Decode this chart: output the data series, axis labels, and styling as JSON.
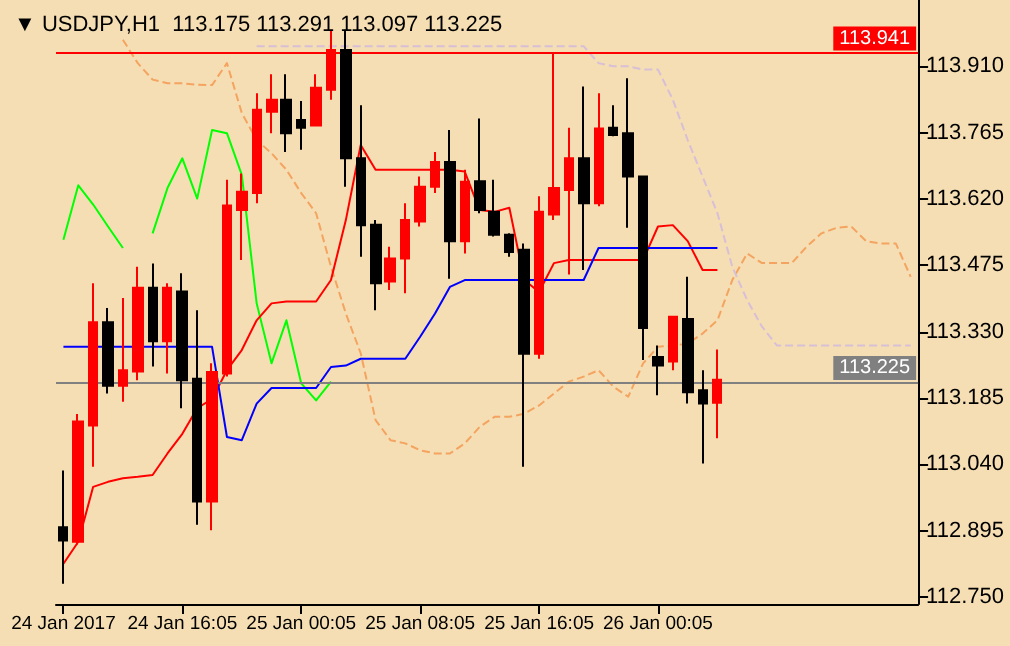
{
  "chart_data": {
    "type": "candlestick",
    "title": "▼ USDJPY,H1  113.175 113.291 113.097 113.225",
    "categories": [
      "24 Jan 2017",
      null,
      null,
      null,
      null,
      null,
      null,
      null,
      "24 Jan 16:05",
      null,
      null,
      null,
      null,
      null,
      null,
      null,
      "25 Jan 00:05",
      null,
      null,
      null,
      null,
      null,
      null,
      null,
      "25 Jan 08:05",
      null,
      null,
      null,
      null,
      null,
      null,
      null,
      "25 Jan 16:05",
      null,
      null,
      null,
      null,
      null,
      null,
      null,
      "26 Jan 00:05",
      null,
      null,
      null,
      null,
      null,
      null,
      null,
      null,
      null,
      null,
      null,
      null,
      null,
      null,
      null,
      null,
      null
    ],
    "ohlc": [
      [
        112.903,
        113.027,
        112.779,
        112.874
      ],
      [
        112.871,
        113.15,
        112.865,
        113.134
      ],
      [
        113.125,
        113.436,
        113.035,
        113.351
      ],
      [
        113.351,
        113.382,
        113.195,
        113.212
      ],
      [
        113.212,
        113.404,
        113.177,
        113.246
      ],
      [
        113.243,
        113.472,
        113.224,
        113.426
      ],
      [
        113.426,
        113.479,
        113.254,
        113.309
      ],
      [
        113.309,
        113.436,
        113.239,
        113.426
      ],
      [
        113.418,
        113.458,
        113.163,
        113.224
      ],
      [
        113.227,
        113.377,
        112.908,
        112.959
      ],
      [
        112.959,
        113.261,
        112.896,
        113.242
      ],
      [
        113.239,
        113.662,
        113.232,
        113.606
      ],
      [
        113.596,
        113.676,
        113.487,
        113.636
      ],
      [
        113.633,
        113.851,
        113.611,
        113.815
      ],
      [
        113.811,
        113.893,
        113.764,
        113.837
      ],
      [
        113.837,
        113.893,
        113.723,
        113.764
      ],
      [
        113.793,
        113.834,
        113.728,
        113.776
      ],
      [
        113.781,
        113.893,
        113.779,
        113.863
      ],
      [
        113.859,
        113.99,
        113.837,
        113.946
      ],
      [
        113.946,
        113.99,
        113.647,
        113.709
      ],
      [
        113.709,
        113.825,
        113.494,
        113.563
      ],
      [
        113.564,
        113.574,
        113.377,
        113.436
      ],
      [
        113.44,
        113.516,
        113.421,
        113.49
      ],
      [
        113.49,
        113.611,
        113.414,
        113.574
      ],
      [
        113.571,
        113.669,
        113.56,
        113.647
      ],
      [
        113.647,
        113.723,
        113.633,
        113.701
      ],
      [
        113.701,
        113.771,
        113.446,
        113.528
      ],
      [
        113.528,
        113.684,
        113.501,
        113.658
      ],
      [
        113.659,
        113.796,
        113.589,
        113.596
      ],
      [
        113.592,
        113.662,
        113.538,
        113.542
      ],
      [
        113.542,
        113.545,
        113.494,
        113.504
      ],
      [
        113.509,
        113.523,
        113.035,
        113.282
      ],
      [
        113.282,
        113.626,
        113.271,
        113.592
      ],
      [
        113.586,
        113.939,
        113.574,
        113.644
      ],
      [
        113.64,
        113.776,
        113.455,
        113.709
      ],
      [
        113.709,
        113.866,
        113.465,
        113.611
      ],
      [
        113.611,
        113.851,
        113.604,
        113.774
      ],
      [
        113.776,
        113.825,
        113.757,
        113.76
      ],
      [
        113.764,
        113.884,
        113.557,
        113.669
      ],
      [
        113.669,
        113.669,
        113.268,
        113.338
      ],
      [
        113.275,
        113.3,
        113.191,
        113.256
      ],
      [
        113.265,
        113.363,
        113.246,
        113.363
      ],
      [
        113.358,
        113.45,
        113.173,
        113.198
      ],
      [
        113.202,
        113.246,
        113.042,
        113.173
      ],
      [
        113.175,
        113.291,
        113.097,
        113.225
      ],
      null,
      null,
      null,
      null,
      null,
      null,
      null,
      null,
      null,
      null,
      null,
      null,
      null
    ],
    "series": [
      {
        "type": "line",
        "color": "#f4a460",
        "line_style": "dashed",
        "values": [
          null,
          null,
          null,
          null,
          113.968,
          113.917,
          113.881,
          113.873,
          113.873,
          113.87,
          113.869,
          113.917,
          113.808,
          113.749,
          113.72,
          113.684,
          113.633,
          113.589,
          113.472,
          113.37,
          113.283,
          113.137,
          113.093,
          113.086,
          113.071,
          113.064,
          113.064,
          113.086,
          113.122,
          113.144,
          113.144,
          113.151,
          113.169,
          113.195,
          113.221,
          113.232,
          113.246,
          113.21,
          113.188,
          113.261,
          113.297,
          113.3,
          113.304,
          113.326,
          113.355,
          113.443,
          113.501,
          113.48,
          113.48,
          113.48,
          113.516,
          113.545,
          113.557,
          113.56,
          113.528,
          113.523,
          113.523,
          113.45
        ]
      },
      {
        "type": "line",
        "color": "#d8bfd8",
        "line_style": "dashed",
        "values": [
          null,
          null,
          null,
          null,
          null,
          null,
          null,
          null,
          null,
          null,
          null,
          null,
          null,
          113.954,
          113.954,
          113.954,
          113.954,
          113.954,
          113.954,
          113.954,
          113.954,
          113.954,
          113.954,
          113.954,
          113.954,
          113.954,
          113.954,
          113.954,
          113.954,
          113.954,
          113.954,
          113.954,
          113.954,
          113.954,
          113.954,
          113.954,
          113.917,
          113.91,
          113.91,
          113.903,
          113.903,
          113.837,
          113.749,
          113.669,
          113.589,
          113.472,
          113.399,
          113.341,
          113.3,
          113.3,
          113.3,
          113.3,
          113.3,
          113.3,
          113.3,
          113.3,
          113.3,
          113.3
        ]
      },
      {
        "type": "line",
        "color": "#00ff00",
        "line_style": "solid",
        "values": [
          113.531,
          113.65,
          113.608,
          113.56,
          113.513,
          null,
          113.545,
          113.644,
          113.709,
          113.621,
          113.771,
          113.764,
          113.673,
          113.392,
          113.261,
          113.355,
          113.217,
          113.18,
          113.221,
          null,
          null,
          null,
          null,
          null,
          null,
          null,
          null,
          null,
          null,
          null,
          null,
          null,
          null,
          null,
          null,
          null,
          null,
          null,
          null,
          null,
          null,
          null,
          null,
          null,
          null,
          null,
          null,
          null,
          null,
          null,
          null,
          null,
          null,
          null,
          null,
          null,
          null,
          null
        ]
      },
      {
        "type": "line",
        "color": "#ff0000",
        "line_style": "solid",
        "values": [
          112.823,
          112.871,
          112.991,
          113.002,
          113.01,
          113.013,
          113.017,
          113.064,
          113.107,
          113.163,
          113.183,
          113.246,
          113.29,
          113.355,
          113.392,
          113.396,
          113.396,
          113.396,
          113.443,
          113.574,
          113.738,
          113.684,
          113.684,
          113.684,
          113.684,
          113.684,
          113.684,
          113.68,
          113.596,
          113.592,
          113.601,
          113.443,
          113.417,
          113.48,
          113.487,
          113.487,
          113.487,
          113.487,
          113.487,
          113.487,
          113.56,
          113.563,
          113.528,
          113.465,
          113.465,
          null,
          null,
          null,
          null,
          null,
          null,
          null,
          null,
          null,
          null,
          null,
          null,
          null
        ]
      },
      {
        "type": "line",
        "color": "#0000ff",
        "line_style": "solid",
        "values": [
          113.297,
          113.297,
          113.297,
          113.297,
          113.297,
          113.297,
          113.297,
          113.297,
          113.297,
          113.297,
          113.297,
          113.1,
          113.093,
          113.173,
          113.207,
          113.207,
          113.207,
          113.207,
          113.253,
          113.256,
          113.271,
          113.271,
          113.271,
          113.271,
          113.319,
          113.37,
          113.428,
          113.443,
          113.443,
          113.443,
          113.443,
          113.443,
          113.443,
          113.443,
          113.443,
          113.443,
          113.513,
          113.513,
          113.513,
          113.513,
          113.513,
          113.513,
          113.513,
          113.513,
          113.513,
          null,
          null,
          null,
          null,
          null,
          null,
          null,
          null,
          null,
          null,
          null,
          null,
          null
        ]
      }
    ],
    "ylim": [
      112.735,
      114.055
    ],
    "yticks": [
      {
        "value": 112.75,
        "label": "112.750"
      },
      112.895,
      {
        "value": 113.04,
        "label": "113.040"
      },
      113.185,
      {
        "value": 113.33,
        "label": "113.330"
      },
      113.475,
      {
        "value": 113.62,
        "label": "113.620"
      },
      113.765,
      {
        "value": 113.91,
        "label": "113.910"
      }
    ],
    "ref_lines": [
      {
        "axis": "y",
        "value": 113.941,
        "label": "113.941",
        "color": "#ff0000",
        "line_style": "solid"
      },
      {
        "axis": "y",
        "value": 113.225,
        "label": "113.225",
        "color": "#808080",
        "line_style": "solid"
      }
    ],
    "grid": false
  }
}
